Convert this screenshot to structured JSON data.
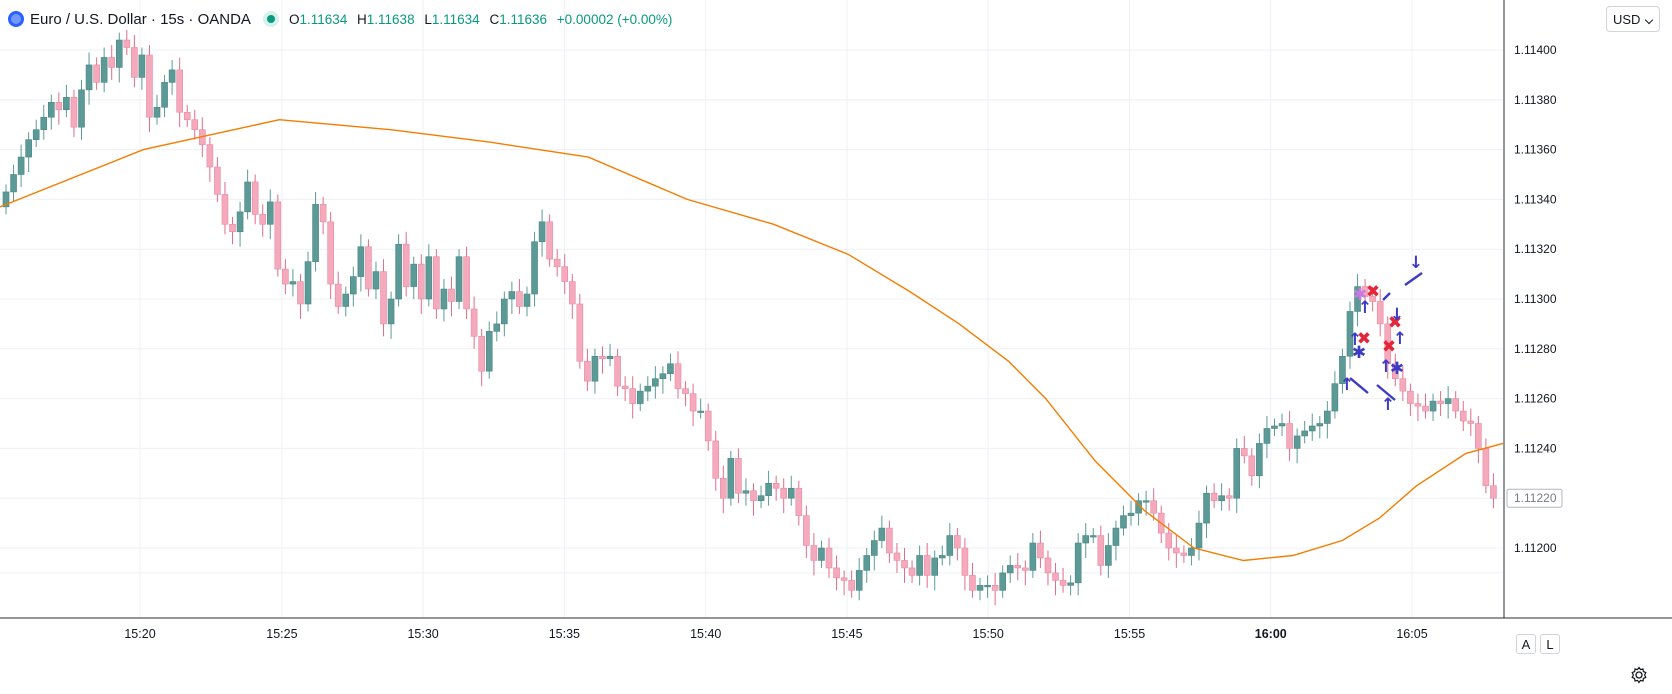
{
  "header": {
    "symbol": "Euro / U.S. Dollar",
    "interval": "15s",
    "exchange": "OANDA",
    "ohlc": {
      "open_label": "O",
      "open": "1.11634",
      "high_label": "H",
      "high": "1.11638",
      "low_label": "L",
      "low": "1.11634",
      "close_label": "C",
      "close": "1.11636",
      "change": "+0.00002 (+0.00%)"
    }
  },
  "currency": "USD",
  "axis_buttons": {
    "auto": "A",
    "log": "L"
  },
  "colors": {
    "up": "#5b9a96",
    "down": "#f4a9bd",
    "ma": "#f57c00",
    "grid": "#eef0f4",
    "marker_blue": "#3d3bc4",
    "marker_red": "#e3263a",
    "marker_pink": "#c77be0"
  },
  "chart_data": {
    "type": "candlestick",
    "ylim": [
      1.1118,
      1.1142
    ],
    "y_ticks": [
      "1.11400",
      "1.11380",
      "1.11360",
      "1.11340",
      "1.11320",
      "1.11300",
      "1.11280",
      "1.11260",
      "1.11240",
      "1.11220",
      "1.11200"
    ],
    "y_tick_values": [
      1.114,
      1.1138,
      1.1136,
      1.1134,
      1.1132,
      1.113,
      1.1128,
      1.1126,
      1.1124,
      1.1122,
      1.112
    ],
    "x_range_minutes": [
      15.62,
      16.08
    ],
    "x_ticks": [
      {
        "label": "15:20",
        "t": 15.333
      },
      {
        "label": "15:25",
        "t": 15.4167
      },
      {
        "label": "15:30",
        "t": 15.5
      },
      {
        "label": "15:35",
        "t": 15.5833
      },
      {
        "label": "15:40",
        "t": 15.6667
      },
      {
        "label": "15:45",
        "t": 15.75
      },
      {
        "label": "15:50",
        "t": 15.8333
      },
      {
        "label": "15:55",
        "t": 15.9167
      },
      {
        "label": "16:00",
        "t": 16.0,
        "bold": true
      },
      {
        "label": "16:05",
        "t": 16.0833
      }
    ],
    "last_price_label": "1.11220",
    "last_price": 1.1122,
    "candle_closes": [
      1.11343,
      1.1135,
      1.11357,
      1.11364,
      1.11368,
      1.11373,
      1.11379,
      1.11376,
      1.11381,
      1.11369,
      1.11384,
      1.11394,
      1.11387,
      1.11397,
      1.11393,
      1.11404,
      1.11401,
      1.11389,
      1.11398,
      1.11373,
      1.11377,
      1.11387,
      1.11392,
      1.11375,
      1.11372,
      1.11368,
      1.11362,
      1.11353,
      1.11342,
      1.1133,
      1.11327,
      1.11335,
      1.11347,
      1.11334,
      1.1133,
      1.11339,
      1.11312,
      1.11306,
      1.11307,
      1.11298,
      1.11315,
      1.11338,
      1.11331,
      1.11306,
      1.11297,
      1.11302,
      1.11309,
      1.11321,
      1.11304,
      1.11311,
      1.1129,
      1.113,
      1.11322,
      1.11305,
      1.11314,
      1.113,
      1.11317,
      1.11296,
      1.11304,
      1.11299,
      1.11317,
      1.11296,
      1.11285,
      1.11271,
      1.11287,
      1.1129,
      1.113,
      1.11303,
      1.11297,
      1.11302,
      1.11323,
      1.11331,
      1.11316,
      1.11313,
      1.11307,
      1.11298,
      1.11275,
      1.11267,
      1.11277,
      1.11276,
      1.11277,
      1.11265,
      1.11264,
      1.11258,
      1.11263,
      1.11265,
      1.11268,
      1.1127,
      1.11274,
      1.11264,
      1.11262,
      1.11255,
      1.11255,
      1.11243,
      1.11228,
      1.1122,
      1.11236,
      1.11222,
      1.11223,
      1.11219,
      1.11221,
      1.11226,
      1.11224,
      1.1122,
      1.11224,
      1.11213,
      1.11201,
      1.11195,
      1.112,
      1.11192,
      1.11188,
      1.11187,
      1.11183,
      1.11191,
      1.11197,
      1.11203,
      1.11208,
      1.11198,
      1.11195,
      1.11192,
      1.11189,
      1.11197,
      1.11189,
      1.11196,
      1.11197,
      1.11205,
      1.112,
      1.11189,
      1.11183,
      1.11185,
      1.11185,
      1.11183,
      1.1119,
      1.11193,
      1.11192,
      1.11191,
      1.11202,
      1.11196,
      1.1119,
      1.11187,
      1.11185,
      1.11186,
      1.11202,
      1.11205,
      1.11205,
      1.11193,
      1.11201,
      1.11208,
      1.11213,
      1.11214,
      1.11219,
      1.11219,
      1.11214,
      1.11206,
      1.112,
      1.11198,
      1.11197,
      1.112,
      1.1121,
      1.11222,
      1.11219,
      1.11221,
      1.1122,
      1.1124,
      1.11237,
      1.11229,
      1.11242,
      1.11248,
      1.11249,
      1.1125,
      1.1124,
      1.11245,
      1.11247,
      1.11249,
      1.1125,
      1.11255,
      1.11266,
      1.11277,
      1.11295,
      1.11305,
      1.11301,
      1.11299,
      1.1129,
      1.11274,
      1.11268,
      1.11263,
      1.11258,
      1.11257,
      1.11255,
      1.11259,
      1.11258,
      1.1126,
      1.11255,
      1.11251,
      1.1125,
      1.1124,
      1.11225,
      1.1122
    ],
    "ma_series": [
      1.11337,
      1.1136,
      1.11372,
      1.11368,
      1.11363,
      1.11357,
      1.1134,
      1.1133,
      1.11318,
      1.11303,
      1.1129,
      1.11275,
      1.1126,
      1.11235,
      1.11215,
      1.112,
      1.11195,
      1.11197,
      1.11203,
      1.11212,
      1.11225,
      1.11238,
      1.11242
    ],
    "ma_t": [
      15.622,
      15.68,
      15.735,
      15.78,
      15.82,
      15.86,
      15.9,
      15.935,
      15.965,
      15.99,
      16.01,
      16.03,
      16.045,
      16.065,
      16.085,
      16.105,
      16.125,
      16.145,
      16.165,
      16.18,
      16.195,
      16.215,
      16.23
    ]
  }
}
